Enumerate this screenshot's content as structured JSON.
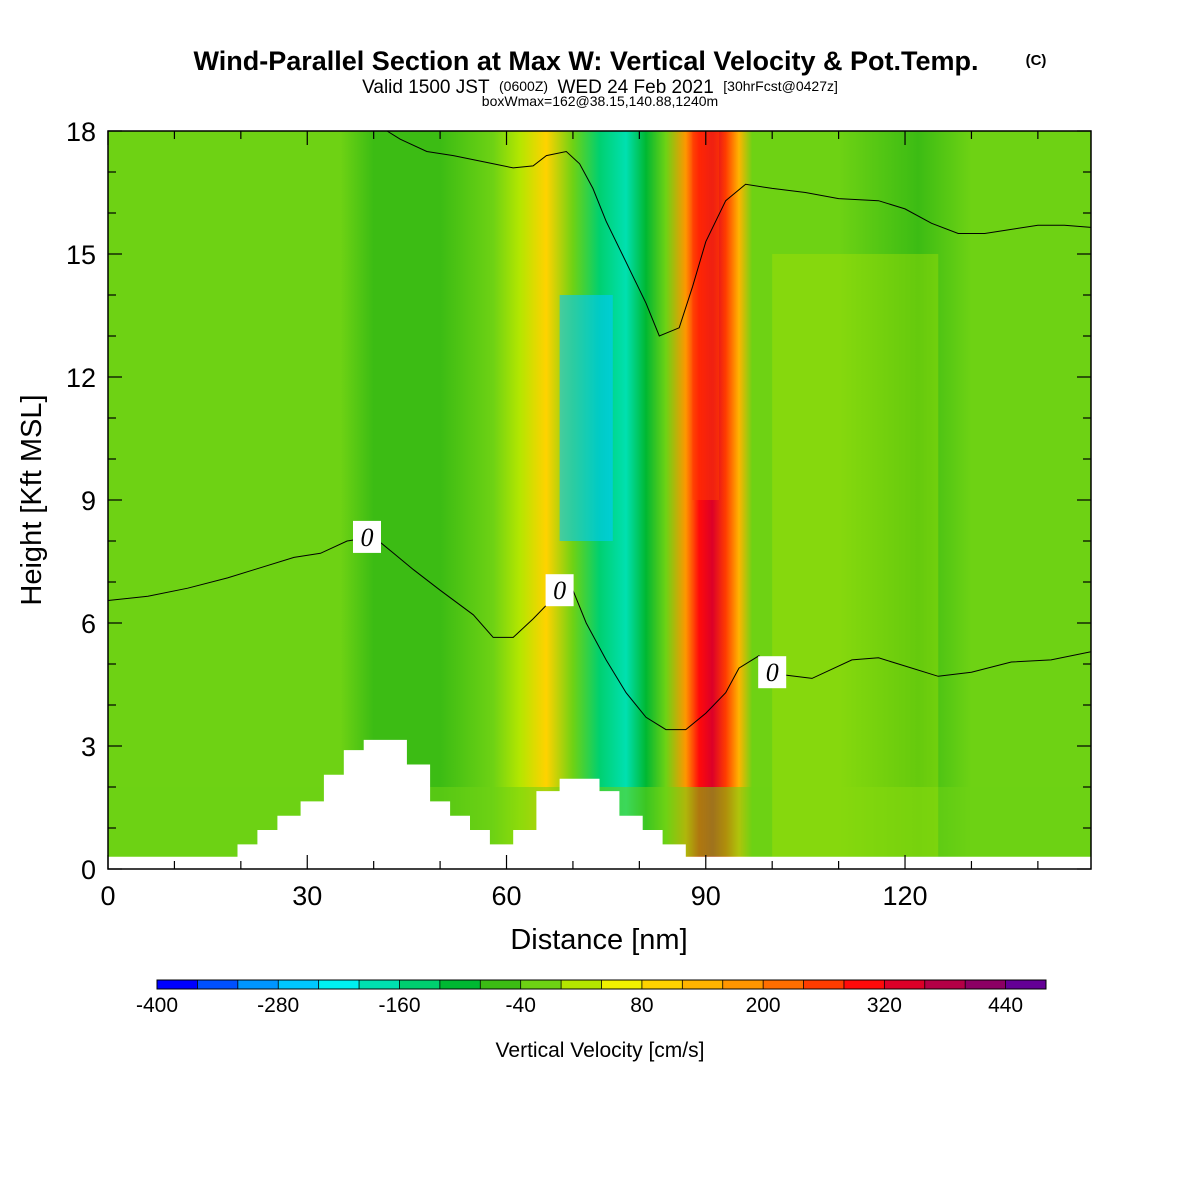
{
  "header": {
    "title": "Wind-Parallel Section at Max W: Vertical Velocity & Pot.Temp.",
    "title_mark": "(C)",
    "valid_prefix": "Valid 1500 JST",
    "valid_utc": "(0600Z)",
    "valid_date": "WED 24 Feb 2021",
    "forecast": "[30hrFcst@0427z]",
    "box_info": "boxWmax=162@38.15,140.88,1240m"
  },
  "chart_data": {
    "type": "heatmap",
    "title": "Wind-Parallel Section at Max W: Vertical Velocity & Pot.Temp.",
    "xlabel": "Distance [nm]",
    "ylabel": "Height [Kft MSL]",
    "xlim": [
      0,
      148
    ],
    "ylim": [
      0,
      18
    ],
    "x_ticks": [
      0,
      30,
      60,
      90,
      120
    ],
    "x_minor_step": 10,
    "y_ticks": [
      0,
      3,
      6,
      9,
      12,
      15,
      18
    ],
    "y_minor_step": 1,
    "grid": false,
    "colorbar": {
      "title": "Vertical Velocity [cm/s]",
      "placement": "bottom",
      "bounds": [
        -400,
        480
      ],
      "step": 40,
      "tick_labels": [
        -400,
        -280,
        -160,
        -40,
        80,
        200,
        320,
        440
      ],
      "colors": [
        "#0000ff",
        "#0050ff",
        "#0096ff",
        "#00c8ff",
        "#00f0f0",
        "#00e0b0",
        "#00d070",
        "#00b832",
        "#3cbc14",
        "#6ed214",
        "#b4e600",
        "#f0f000",
        "#ffd200",
        "#ffb400",
        "#ff9600",
        "#ff6e00",
        "#ff3c00",
        "#ff0a0a",
        "#dc0028",
        "#b40046",
        "#8c0064",
        "#640096"
      ]
    },
    "w_field": {
      "description": "vertical velocity columns (cm/s) across distance, estimated",
      "x": [
        0,
        35,
        40,
        45,
        50,
        58,
        62,
        66,
        70,
        74,
        78,
        81,
        84,
        87,
        89,
        91,
        93,
        95,
        97,
        102,
        110,
        122,
        130,
        140,
        148
      ],
      "w": [
        -20,
        -20,
        -60,
        -70,
        -60,
        -40,
        20,
        80,
        -20,
        -130,
        -200,
        -90,
        -10,
        180,
        290,
        320,
        260,
        150,
        -40,
        -20,
        -30,
        -60,
        -30,
        -20,
        -40
      ]
    },
    "theta_contour": {
      "label": "0",
      "points": [
        [
          0,
          6.55
        ],
        [
          6,
          6.65
        ],
        [
          12,
          6.85
        ],
        [
          18,
          7.1
        ],
        [
          22,
          7.3
        ],
        [
          28,
          7.6
        ],
        [
          32,
          7.7
        ],
        [
          36,
          8.0
        ],
        [
          40,
          8.1
        ],
        [
          43,
          7.7
        ],
        [
          46,
          7.3
        ],
        [
          50,
          6.8
        ],
        [
          55,
          6.2
        ],
        [
          58,
          5.65
        ],
        [
          61,
          5.65
        ],
        [
          64,
          6.1
        ],
        [
          67,
          6.6
        ],
        [
          70,
          6.8
        ],
        [
          72,
          6.0
        ],
        [
          75,
          5.1
        ],
        [
          78,
          4.3
        ],
        [
          81,
          3.7
        ],
        [
          84,
          3.4
        ],
        [
          87,
          3.4
        ],
        [
          90,
          3.8
        ],
        [
          93,
          4.3
        ],
        [
          95,
          4.9
        ],
        [
          98,
          5.2
        ],
        [
          101,
          4.75
        ],
        [
          106,
          4.65
        ],
        [
          112,
          5.1
        ],
        [
          116,
          5.15
        ],
        [
          120,
          4.95
        ],
        [
          125,
          4.7
        ],
        [
          130,
          4.8
        ],
        [
          136,
          5.05
        ],
        [
          142,
          5.1
        ],
        [
          148,
          5.3
        ]
      ],
      "label_positions": [
        [
          39,
          8.1
        ],
        [
          68,
          6.8
        ],
        [
          100,
          4.8
        ]
      ]
    },
    "theta_contour_upper": {
      "points": [
        [
          42,
          18.0
        ],
        [
          44,
          17.8
        ],
        [
          48,
          17.5
        ],
        [
          52,
          17.4
        ],
        [
          58,
          17.2
        ],
        [
          61,
          17.1
        ],
        [
          64,
          17.15
        ],
        [
          66,
          17.4
        ],
        [
          69,
          17.5
        ],
        [
          71,
          17.2
        ],
        [
          73,
          16.6
        ],
        [
          75,
          15.8
        ],
        [
          78,
          14.8
        ],
        [
          81,
          13.8
        ],
        [
          83,
          13.0
        ],
        [
          86,
          13.2
        ],
        [
          88,
          14.2
        ],
        [
          90,
          15.3
        ],
        [
          93,
          16.3
        ],
        [
          96,
          16.7
        ],
        [
          100,
          16.6
        ],
        [
          105,
          16.5
        ],
        [
          110,
          16.35
        ],
        [
          116,
          16.3
        ],
        [
          120,
          16.1
        ],
        [
          124,
          15.75
        ],
        [
          128,
          15.5
        ],
        [
          132,
          15.5
        ],
        [
          136,
          15.6
        ],
        [
          140,
          15.7
        ],
        [
          144,
          15.7
        ],
        [
          148,
          15.65
        ]
      ]
    },
    "terrain": {
      "description": "stepped terrain profile (Kft MSL)",
      "points": [
        [
          0,
          0.3
        ],
        [
          19.5,
          0.3
        ],
        [
          19.5,
          0.6
        ],
        [
          22.5,
          0.6
        ],
        [
          22.5,
          0.95
        ],
        [
          25.5,
          0.95
        ],
        [
          25.5,
          1.3
        ],
        [
          29,
          1.3
        ],
        [
          29,
          1.65
        ],
        [
          32.5,
          1.65
        ],
        [
          32.5,
          2.3
        ],
        [
          35.5,
          2.3
        ],
        [
          35.5,
          2.9
        ],
        [
          38.5,
          2.9
        ],
        [
          38.5,
          3.15
        ],
        [
          45,
          3.15
        ],
        [
          45,
          2.55
        ],
        [
          48.5,
          2.55
        ],
        [
          48.5,
          1.65
        ],
        [
          51.5,
          1.65
        ],
        [
          51.5,
          1.3
        ],
        [
          54.5,
          1.3
        ],
        [
          54.5,
          0.95
        ],
        [
          57.5,
          0.95
        ],
        [
          57.5,
          0.6
        ],
        [
          61,
          0.6
        ],
        [
          61,
          0.95
        ],
        [
          64.5,
          0.95
        ],
        [
          64.5,
          1.9
        ],
        [
          68,
          1.9
        ],
        [
          68,
          2.2
        ],
        [
          74,
          2.2
        ],
        [
          74,
          1.9
        ],
        [
          77,
          1.9
        ],
        [
          77,
          1.3
        ],
        [
          80.5,
          1.3
        ],
        [
          80.5,
          0.95
        ],
        [
          83.5,
          0.95
        ],
        [
          83.5,
          0.6
        ],
        [
          87,
          0.6
        ],
        [
          87,
          0.3
        ],
        [
          148,
          0.3
        ]
      ]
    }
  }
}
